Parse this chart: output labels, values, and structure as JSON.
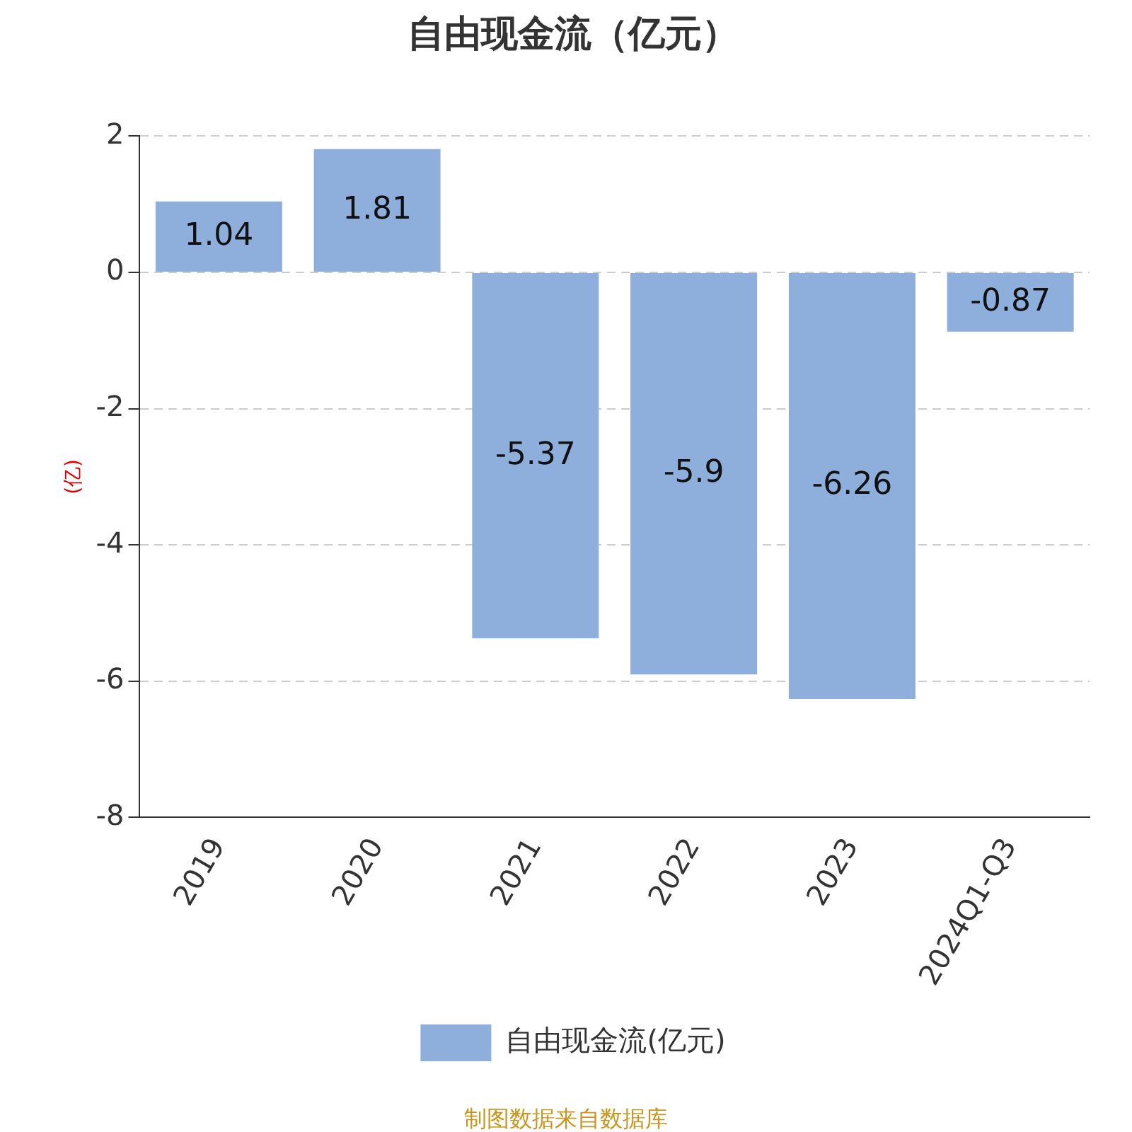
{
  "chart_data": {
    "type": "bar",
    "title": "自由现金流（亿元）",
    "ylabel": "(亿)",
    "categories": [
      "2019",
      "2020",
      "2021",
      "2022",
      "2023",
      "2024Q1-Q3"
    ],
    "series": [
      {
        "name": "自由现金流(亿元)",
        "color": "#8eaedb",
        "values": [
          1.04,
          1.81,
          -5.37,
          -5.9,
          -6.26,
          -0.87
        ]
      }
    ],
    "ylim": [
      -8,
      2
    ],
    "yticks": [
      -8,
      -6,
      -4,
      -2,
      0,
      2
    ],
    "grid": "y",
    "legend": "bottom",
    "data_labels": true,
    "annotations": [
      "制图数据来自数据库"
    ]
  }
}
